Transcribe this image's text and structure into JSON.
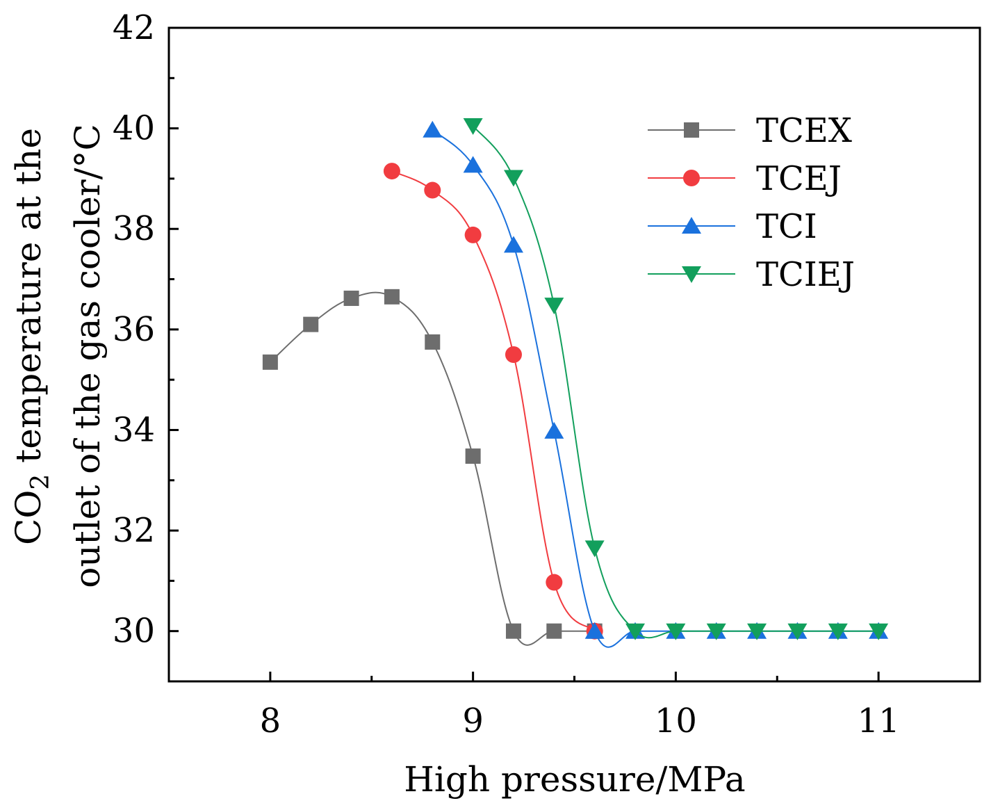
{
  "chart_data": {
    "type": "line",
    "title": "",
    "xlabel": "High pressure/MPa",
    "ylabel": {
      "line1_prefix": "CO",
      "line1_subscript": "2",
      "line1_suffix": " temperature at the",
      "line2": "outlet of the gas cooler/°C"
    },
    "xlim": [
      7.5,
      11.5
    ],
    "ylim": [
      29,
      42
    ],
    "x_ticks": [
      8,
      9,
      10,
      11
    ],
    "y_ticks": [
      30,
      32,
      34,
      36,
      38,
      40,
      42
    ],
    "legend_position": "top-right",
    "series": [
      {
        "name": "TCEX",
        "color": "#6d6d6d",
        "marker": "square",
        "x": [
          8.0,
          8.2,
          8.4,
          8.6,
          8.8,
          9.0,
          9.2,
          9.4,
          9.6
        ],
        "y": [
          35.35,
          36.1,
          36.62,
          36.65,
          35.75,
          33.48,
          30.0,
          30.0,
          30.0
        ]
      },
      {
        "name": "TCEJ",
        "color": "#f13c40",
        "marker": "circle",
        "x": [
          8.6,
          8.8,
          9.0,
          9.2,
          9.4,
          9.6
        ],
        "y": [
          39.15,
          38.77,
          37.88,
          35.5,
          30.97,
          30.0
        ]
      },
      {
        "name": "TCI",
        "color": "#1a71dd",
        "marker": "triangle-up",
        "x": [
          8.8,
          9.0,
          9.2,
          9.4,
          9.6,
          9.8,
          10.0,
          10.2,
          10.4,
          10.6,
          10.8,
          11.0
        ],
        "y": [
          39.97,
          39.27,
          37.68,
          33.98,
          30.0,
          30.0,
          30.0,
          30.0,
          30.0,
          30.0,
          30.0,
          30.0
        ]
      },
      {
        "name": "TCIEJ",
        "color": "#129f5c",
        "marker": "triangle-down",
        "x": [
          9.0,
          9.2,
          9.4,
          9.6,
          9.8,
          10.0,
          10.2,
          10.4,
          10.6,
          10.8,
          11.0
        ],
        "y": [
          40.05,
          39.02,
          36.48,
          31.65,
          30.0,
          30.0,
          30.0,
          30.0,
          30.0,
          30.0,
          30.0
        ]
      }
    ]
  }
}
